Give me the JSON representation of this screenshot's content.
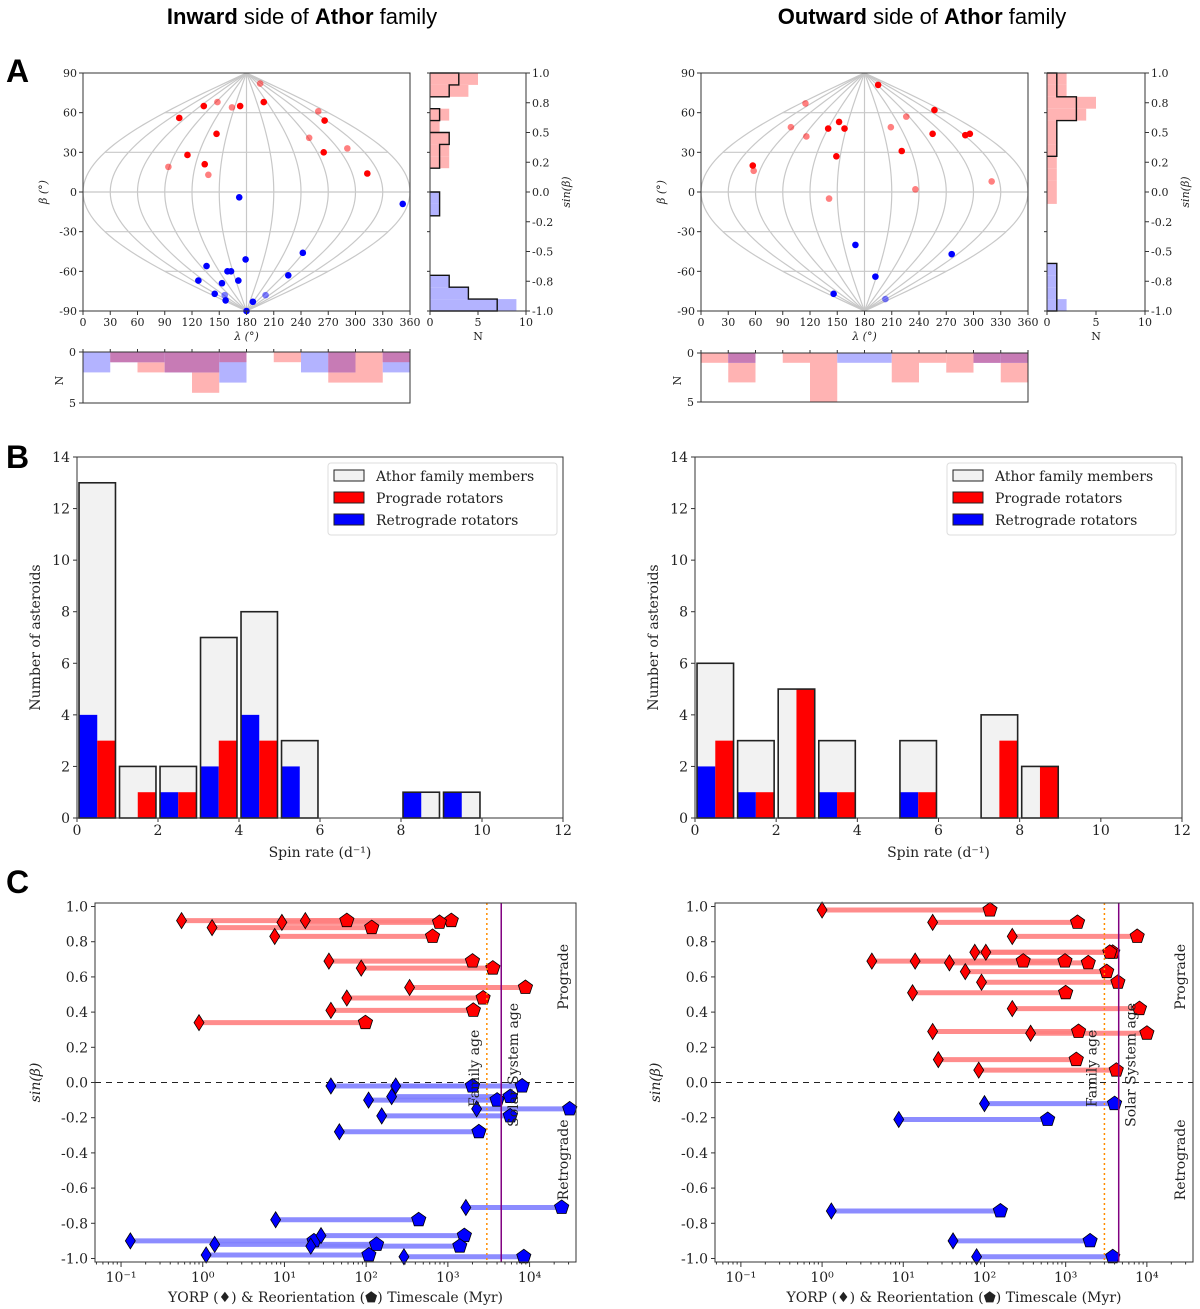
{
  "titles": {
    "left": {
      "bold1": "Inward",
      "mid": " side of ",
      "bold2": "Athor",
      "end": " family"
    },
    "right": {
      "bold1": "Outward",
      "mid": " side of ",
      "bold2": "Athor",
      "end": " family"
    }
  },
  "panel_labels": [
    "A",
    "B",
    "C"
  ],
  "colors": {
    "prograde": "#ff0000",
    "retrograde": "#0000ff",
    "prograde_fill": "#ffb3b3",
    "retrograde_fill": "#b3b3ff",
    "overlap_fill": "#c77bb5",
    "members_fill": "#f2f2f2",
    "grid": "#c8c8c8",
    "family_age": "#ff8c00",
    "solar_system_age": "#800080",
    "prograde_segment": "#ff8080",
    "retrograde_segment": "#8080ff"
  },
  "chart_data": [
    {
      "type": "scatter",
      "panel": "A",
      "side": "inward",
      "projection": "sinusoidal",
      "xlabel": "λ (°)",
      "ylabel": "β (°)",
      "xlim": [
        0,
        360
      ],
      "ylim": [
        -90,
        90
      ],
      "xticks": [
        "0",
        "30",
        "60",
        "90",
        "120",
        "150",
        "180",
        "210",
        "240",
        "270",
        "300",
        "330",
        "360"
      ],
      "yticks": [
        "90",
        "60",
        "30",
        "0",
        "-30",
        "-60",
        "-90"
      ],
      "prograde_points": [
        {
          "x": 195,
          "y": 82,
          "faded": true
        },
        {
          "x": 199,
          "y": 68
        },
        {
          "x": 133,
          "y": 65
        },
        {
          "x": 148,
          "y": 68,
          "faded": true
        },
        {
          "x": 164,
          "y": 64,
          "faded": true
        },
        {
          "x": 173,
          "y": 65
        },
        {
          "x": 106,
          "y": 56
        },
        {
          "x": 147,
          "y": 44
        },
        {
          "x": 259,
          "y": 61,
          "faded": true
        },
        {
          "x": 266,
          "y": 54
        },
        {
          "x": 249,
          "y": 41,
          "faded": true
        },
        {
          "x": 115,
          "y": 28
        },
        {
          "x": 265,
          "y": 30
        },
        {
          "x": 291,
          "y": 33,
          "faded": true
        },
        {
          "x": 94,
          "y": 19,
          "faded": true
        },
        {
          "x": 134,
          "y": 21
        },
        {
          "x": 138,
          "y": 13,
          "faded": true
        },
        {
          "x": 313,
          "y": 14
        }
      ],
      "retrograde_points": [
        {
          "x": 172,
          "y": -4
        },
        {
          "x": 352,
          "y": -9
        },
        {
          "x": 179,
          "y": -51
        },
        {
          "x": 242,
          "y": -46
        },
        {
          "x": 136,
          "y": -56
        },
        {
          "x": 159,
          "y": -60
        },
        {
          "x": 163,
          "y": -60
        },
        {
          "x": 226,
          "y": -63
        },
        {
          "x": 127,
          "y": -67
        },
        {
          "x": 153,
          "y": -69
        },
        {
          "x": 171,
          "y": -67
        },
        {
          "x": 145,
          "y": -77
        },
        {
          "x": 156,
          "y": -78,
          "faded": true
        },
        {
          "x": 201,
          "y": -78,
          "faded": true
        },
        {
          "x": 157,
          "y": -82
        },
        {
          "x": 187,
          "y": -83
        },
        {
          "x": 180,
          "y": -90
        }
      ]
    },
    {
      "type": "bar",
      "orientation": "horizontal",
      "panel": "A",
      "side": "inward",
      "xlabel": "N",
      "ylabel": "sin(β)",
      "xlim": [
        0,
        10
      ],
      "xticks": [
        "0",
        "5",
        "10"
      ],
      "yticks": [
        "1.0",
        "0.8",
        "0.5",
        "0.2",
        "0.0",
        "-0.2",
        "-0.5",
        "-0.8",
        "-1.0"
      ],
      "bin_width_deg": 9,
      "prograde_counts": [
        5,
        4,
        0,
        2,
        1,
        2,
        2,
        2,
        0,
        0,
        0,
        0,
        0,
        0,
        0,
        0,
        0,
        0,
        0,
        0
      ],
      "retrograde_counts": [
        0,
        0,
        0,
        0,
        0,
        0,
        0,
        0,
        0,
        0,
        1,
        1,
        0,
        0,
        0,
        0,
        0,
        2,
        4,
        9
      ],
      "outline_counts": [
        3,
        2,
        0,
        1,
        0,
        2,
        1,
        1,
        0,
        0,
        1,
        1,
        0,
        0,
        0,
        0,
        0,
        2,
        4,
        7
      ]
    },
    {
      "type": "bar",
      "panel": "A",
      "side": "inward",
      "ylabel": "N",
      "yticks": [
        "0",
        "5"
      ],
      "ylim": [
        0,
        5
      ],
      "bin_width_deg": 30,
      "prograde_counts": [
        0,
        1,
        2,
        2,
        4,
        1,
        0,
        1,
        0,
        3,
        3,
        1
      ],
      "retrograde_counts": [
        2,
        1,
        1,
        2,
        2,
        3,
        0,
        0,
        2,
        2,
        0,
        2
      ]
    },
    {
      "type": "scatter",
      "panel": "A",
      "side": "outward",
      "projection": "sinusoidal",
      "xlabel": "λ (°)",
      "ylabel": "β (°)",
      "xlim": [
        0,
        360
      ],
      "ylim": [
        -90,
        90
      ],
      "xticks": [
        "0",
        "30",
        "60",
        "90",
        "120",
        "150",
        "180",
        "210",
        "240",
        "270",
        "300",
        "330",
        "360"
      ],
      "yticks": [
        "90",
        "60",
        "30",
        "0",
        "-30",
        "-60",
        "-90"
      ],
      "prograde_points": [
        {
          "x": 195,
          "y": 81
        },
        {
          "x": 257,
          "y": 62
        },
        {
          "x": 115,
          "y": 67,
          "faded": true
        },
        {
          "x": 226,
          "y": 57,
          "faded": true
        },
        {
          "x": 99,
          "y": 49,
          "faded": true
        },
        {
          "x": 152,
          "y": 53
        },
        {
          "x": 140,
          "y": 48
        },
        {
          "x": 158,
          "y": 48
        },
        {
          "x": 116,
          "y": 42,
          "faded": true
        },
        {
          "x": 209,
          "y": 49,
          "faded": true
        },
        {
          "x": 255,
          "y": 44
        },
        {
          "x": 291,
          "y": 43
        },
        {
          "x": 296,
          "y": 44
        },
        {
          "x": 149,
          "y": 27
        },
        {
          "x": 221,
          "y": 31
        },
        {
          "x": 57,
          "y": 20
        },
        {
          "x": 58,
          "y": 16,
          "faded": true
        },
        {
          "x": 320,
          "y": 8,
          "faded": true
        },
        {
          "x": 236,
          "y": 2,
          "faded": true
        },
        {
          "x": 141,
          "y": -5,
          "faded": true
        }
      ],
      "retrograde_points": [
        {
          "x": 170,
          "y": -40
        },
        {
          "x": 276,
          "y": -47
        },
        {
          "x": 192,
          "y": -64
        },
        {
          "x": 146,
          "y": -77
        },
        {
          "x": 203,
          "y": -81,
          "faded": true
        }
      ]
    },
    {
      "type": "bar",
      "orientation": "horizontal",
      "panel": "A",
      "side": "outward",
      "xlabel": "N",
      "ylabel": "sin(β)",
      "xlim": [
        0,
        10
      ],
      "xticks": [
        "0",
        "5",
        "10"
      ],
      "yticks": [
        "1.0",
        "0.8",
        "0.5",
        "0.2",
        "0.0",
        "-0.2",
        "-0.5",
        "-0.8",
        "-1.0"
      ],
      "bin_width_deg": 9,
      "prograde_counts": [
        2,
        2,
        5,
        4,
        1,
        1,
        1,
        1,
        1,
        1,
        1,
        0,
        0,
        0,
        0,
        0,
        0,
        0,
        0,
        0
      ],
      "retrograde_counts": [
        0,
        0,
        0,
        0,
        0,
        0,
        0,
        0,
        0,
        0,
        0,
        0,
        0,
        0,
        0,
        0,
        1,
        1,
        1,
        2
      ],
      "outline_counts": [
        1,
        1,
        3,
        3,
        1,
        1,
        1,
        0,
        0,
        0,
        0,
        0,
        0,
        0,
        0,
        0,
        1,
        1,
        1,
        1
      ]
    },
    {
      "type": "bar",
      "panel": "A",
      "side": "outward",
      "ylabel": "N",
      "yticks": [
        "0",
        "5"
      ],
      "ylim": [
        0,
        5
      ],
      "bin_width_deg": 30,
      "prograde_counts": [
        1,
        3,
        0,
        1,
        5,
        0,
        0,
        3,
        1,
        2,
        1,
        3
      ],
      "retrograde_counts": [
        0,
        1,
        0,
        0,
        0,
        1,
        1,
        0,
        0,
        0,
        1,
        1
      ]
    },
    {
      "type": "bar",
      "panel": "B",
      "side": "inward",
      "xlabel": "Spin rate (d⁻¹)",
      "ylabel": "Number of asteroids",
      "xlim": [
        0,
        12
      ],
      "ylim": [
        0,
        14
      ],
      "xticks": [
        "0",
        "2",
        "4",
        "6",
        "8",
        "10",
        "12"
      ],
      "yticks": [
        "0",
        "2",
        "4",
        "6",
        "8",
        "10",
        "12",
        "14"
      ],
      "categories": [
        "0-1",
        "1-2",
        "2-3",
        "3-4",
        "4-5",
        "5-6",
        "6-7",
        "7-8",
        "8-9",
        "9-10",
        "10-11",
        "11-12"
      ],
      "series": [
        {
          "name": "Athor family members",
          "values": [
            13,
            2,
            2,
            7,
            8,
            3,
            0,
            0,
            1,
            1,
            0,
            0
          ]
        },
        {
          "name": "Prograde rotators",
          "values": [
            3,
            1,
            1,
            3,
            3,
            0,
            0,
            0,
            0,
            0,
            0,
            0
          ]
        },
        {
          "name": "Retrograde rotators",
          "values": [
            4,
            0,
            1,
            2,
            4,
            2,
            0,
            0,
            1,
            1,
            0,
            0
          ]
        }
      ],
      "legend": "top-right"
    },
    {
      "type": "bar",
      "panel": "B",
      "side": "outward",
      "xlabel": "Spin rate (d⁻¹)",
      "ylabel": "Number of asteroids",
      "xlim": [
        0,
        12
      ],
      "ylim": [
        0,
        14
      ],
      "xticks": [
        "0",
        "2",
        "4",
        "6",
        "8",
        "10",
        "12"
      ],
      "yticks": [
        "0",
        "2",
        "4",
        "6",
        "8",
        "10",
        "12",
        "14"
      ],
      "categories": [
        "0-1",
        "1-2",
        "2-3",
        "3-4",
        "4-5",
        "5-6",
        "6-7",
        "7-8",
        "8-9",
        "9-10",
        "10-11",
        "11-12"
      ],
      "series": [
        {
          "name": "Athor family members",
          "values": [
            6,
            3,
            5,
            3,
            0,
            3,
            0,
            4,
            2,
            0,
            0,
            0
          ]
        },
        {
          "name": "Prograde rotators",
          "values": [
            3,
            1,
            5,
            1,
            0,
            1,
            0,
            3,
            2,
            0,
            0,
            0
          ]
        },
        {
          "name": "Retrograde rotators",
          "values": [
            2,
            1,
            0,
            1,
            0,
            1,
            0,
            0,
            0,
            0,
            0,
            0
          ]
        }
      ],
      "legend": "top-right"
    },
    {
      "type": "scatter",
      "panel": "C",
      "side": "inward",
      "xscale": "log",
      "xlabel": "YORP (♦) & Reorientation (⬟) Timescale (Myr)",
      "ylabel": "sin(β)",
      "xlim": [
        0.048,
        37000
      ],
      "ylim": [
        -1.02,
        1.02
      ],
      "xticks": [
        {
          "v": 0.1,
          "label": "10⁻¹"
        },
        {
          "v": 1,
          "label": "10⁰"
        },
        {
          "v": 10,
          "label": "10¹"
        },
        {
          "v": 100,
          "label": "10²"
        },
        {
          "v": 1000,
          "label": "10³"
        },
        {
          "v": 10000,
          "label": "10⁴"
        }
      ],
      "yticks": [
        "1.0",
        "0.8",
        "0.6",
        "0.4",
        "0.2",
        "0.0",
        "-0.2",
        "-0.4",
        "-0.6",
        "-0.8",
        "-1.0"
      ],
      "family_age": {
        "label": "Family age",
        "value": 3000
      },
      "solar_system_age": {
        "label": "Solar System age",
        "value": 4500
      },
      "prograde_label": "Prograde",
      "retrograde_label": "Retrograde",
      "prograde": [
        {
          "sinb": 0.92,
          "yorp": 0.55,
          "reorient": 1100
        },
        {
          "sinb": 0.88,
          "yorp": 1.3,
          "reorient": 117
        },
        {
          "sinb": 0.91,
          "yorp": 9.3,
          "reorient": 790
        },
        {
          "sinb": 0.92,
          "yorp": 18,
          "reorient": 58
        },
        {
          "sinb": 0.83,
          "yorp": 7.6,
          "reorient": 650
        },
        {
          "sinb": 0.69,
          "yorp": 35,
          "reorient": 2000
        },
        {
          "sinb": 0.65,
          "yorp": 87,
          "reorient": 3550
        },
        {
          "sinb": 0.54,
          "yorp": 340,
          "reorient": 8900
        },
        {
          "sinb": 0.48,
          "yorp": 58,
          "reorient": 2700
        },
        {
          "sinb": 0.41,
          "yorp": 37,
          "reorient": 2050
        },
        {
          "sinb": 0.34,
          "yorp": 0.9,
          "reorient": 98
        }
      ],
      "retrograde": [
        {
          "sinb": -0.02,
          "yorp": 37,
          "reorient": 8100
        },
        {
          "sinb": -0.02,
          "yorp": 230,
          "reorient": 2000
        },
        {
          "sinb": -0.1,
          "yorp": 107,
          "reorient": 4000
        },
        {
          "sinb": -0.08,
          "yorp": 205,
          "reorient": 5800
        },
        {
          "sinb": -0.19,
          "yorp": 155,
          "reorient": 5800
        },
        {
          "sinb": -0.15,
          "yorp": 2250,
          "reorient": 31000
        },
        {
          "sinb": -0.28,
          "yorp": 47,
          "reorient": 2400
        },
        {
          "sinb": -0.71,
          "yorp": 1660,
          "reorient": 24700
        },
        {
          "sinb": -0.78,
          "yorp": 7.8,
          "reorient": 440
        },
        {
          "sinb": -0.9,
          "yorp": 0.13,
          "reorient": 23
        },
        {
          "sinb": -0.87,
          "yorp": 28,
          "reorient": 1590
        },
        {
          "sinb": -0.92,
          "yorp": 1.4,
          "reorient": 134
        },
        {
          "sinb": -0.93,
          "yorp": 21,
          "reorient": 1400
        },
        {
          "sinb": -0.98,
          "yorp": 1.1,
          "reorient": 108
        },
        {
          "sinb": -0.99,
          "yorp": 290,
          "reorient": 8500
        }
      ]
    },
    {
      "type": "scatter",
      "panel": "C",
      "side": "outward",
      "xscale": "log",
      "xlabel": "YORP (♦) & Reorientation (⬟) Timescale (Myr)",
      "ylabel": "sin(β)",
      "xlim": [
        0.048,
        37000
      ],
      "ylim": [
        -1.02,
        1.02
      ],
      "xticks": [
        {
          "v": 0.1,
          "label": "10⁻¹"
        },
        {
          "v": 1,
          "label": "10⁰"
        },
        {
          "v": 10,
          "label": "10¹"
        },
        {
          "v": 100,
          "label": "10²"
        },
        {
          "v": 1000,
          "label": "10³"
        },
        {
          "v": 10000,
          "label": "10⁴"
        }
      ],
      "yticks": [
        "1.0",
        "0.8",
        "0.6",
        "0.4",
        "0.2",
        "0.0",
        "-0.2",
        "-0.4",
        "-0.6",
        "-0.8",
        "-1.0"
      ],
      "family_age": {
        "label": "Family age",
        "value": 3000
      },
      "solar_system_age": {
        "label": "Solar System age",
        "value": 4500
      },
      "prograde_label": "Prograde",
      "retrograde_label": "Retrograde",
      "prograde": [
        {
          "sinb": 0.98,
          "yorp": 1.0,
          "reorient": 117
        },
        {
          "sinb": 0.91,
          "yorp": 23,
          "reorient": 1400
        },
        {
          "sinb": 0.83,
          "yorp": 220,
          "reorient": 7600
        },
        {
          "sinb": 0.74,
          "yorp": 76,
          "reorient": 3800
        },
        {
          "sinb": 0.74,
          "yorp": 104,
          "reorient": 3500
        },
        {
          "sinb": 0.69,
          "yorp": 4.1,
          "reorient": 300
        },
        {
          "sinb": 0.69,
          "yorp": 14,
          "reorient": 980
        },
        {
          "sinb": 0.68,
          "yorp": 37,
          "reorient": 1900
        },
        {
          "sinb": 0.63,
          "yorp": 58,
          "reorient": 3200
        },
        {
          "sinb": 0.57,
          "yorp": 92,
          "reorient": 4400
        },
        {
          "sinb": 0.51,
          "yorp": 13,
          "reorient": 1000
        },
        {
          "sinb": 0.42,
          "yorp": 220,
          "reorient": 8100
        },
        {
          "sinb": 0.29,
          "yorp": 23,
          "reorient": 1440
        },
        {
          "sinb": 0.28,
          "yorp": 370,
          "reorient": 10000
        },
        {
          "sinb": 0.13,
          "yorp": 27,
          "reorient": 1350
        },
        {
          "sinb": 0.07,
          "yorp": 85,
          "reorient": 4200
        }
      ],
      "retrograde": [
        {
          "sinb": -0.12,
          "yorp": 100,
          "reorient": 4000
        },
        {
          "sinb": -0.21,
          "yorp": 8.8,
          "reorient": 600
        },
        {
          "sinb": -0.73,
          "yorp": 1.3,
          "reorient": 157
        },
        {
          "sinb": -0.9,
          "yorp": 41,
          "reorient": 2000
        },
        {
          "sinb": -0.99,
          "yorp": 80,
          "reorient": 3800
        }
      ]
    }
  ]
}
